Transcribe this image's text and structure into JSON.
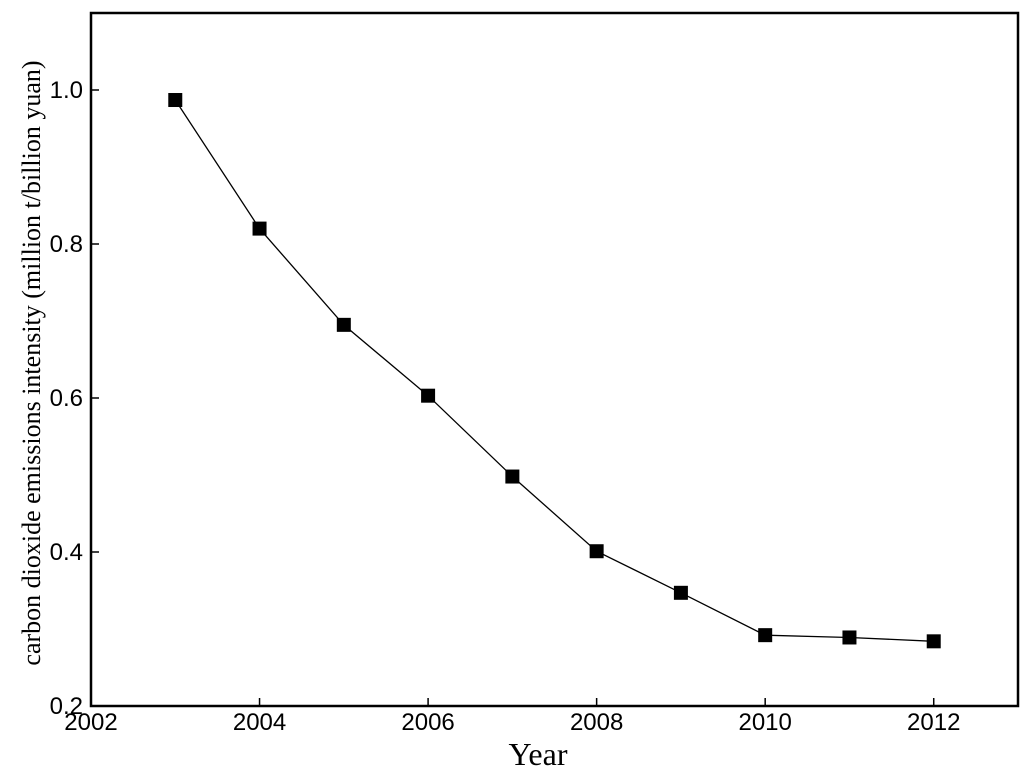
{
  "chart_data": {
    "type": "line",
    "title": "",
    "xlabel": "Year",
    "ylabel": "carbon dioxide emissions intensity (million t/billion yuan)",
    "xlim": [
      2002,
      2013
    ],
    "ylim": [
      0.2,
      1.1
    ],
    "x_ticks": [
      2002,
      2004,
      2006,
      2008,
      2010,
      2012
    ],
    "x_tick_labels": [
      "2002",
      "2004",
      "2006",
      "2008",
      "2010",
      "2012"
    ],
    "y_ticks": [
      0.2,
      0.4,
      0.6,
      0.8,
      1.0
    ],
    "y_tick_labels": [
      "0.2",
      "0.4",
      "0.6",
      "0.8",
      "1.0"
    ],
    "grid": false,
    "marker": "square",
    "line_color": "#000000",
    "marker_color": "#000000",
    "series": [
      {
        "x": [
          2003,
          2004,
          2005,
          2006,
          2007,
          2008,
          2009,
          2010,
          2011,
          2012
        ],
        "values": [
          0.987,
          0.82,
          0.695,
          0.603,
          0.498,
          0.401,
          0.347,
          0.292,
          0.289,
          0.284
        ]
      }
    ]
  }
}
